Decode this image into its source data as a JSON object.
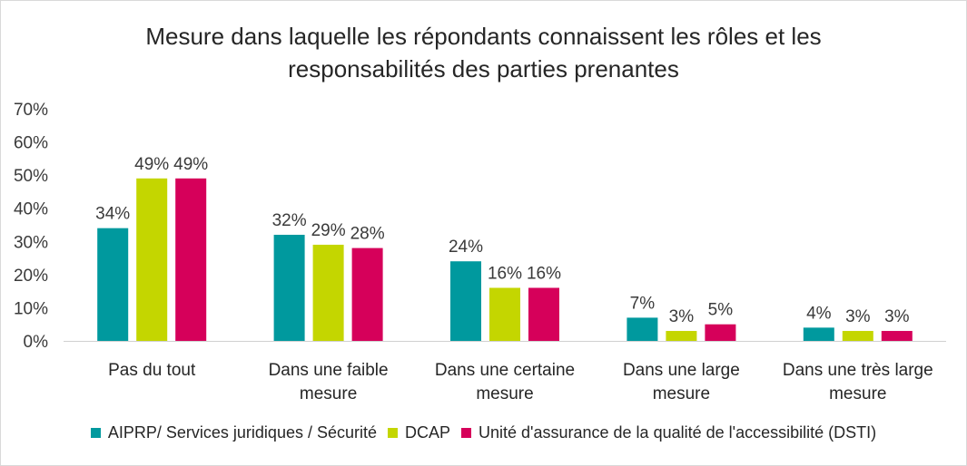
{
  "chart_data": {
    "type": "bar",
    "title_lines": [
      "Mesure dans laquelle les répondants connaissent les rôles et les",
      "responsabilités des parties prenantes"
    ],
    "categories": [
      [
        "Pas du tout"
      ],
      [
        "Dans une faible",
        "mesure"
      ],
      [
        "Dans une certaine",
        "mesure"
      ],
      [
        "Dans une large",
        "mesure"
      ],
      [
        "Dans une très large",
        "mesure"
      ]
    ],
    "series": [
      {
        "name": "AIPRP/ Services juridiques / Sécurité",
        "color": "#00999e",
        "values": [
          34,
          32,
          24,
          7,
          4
        ],
        "labels": [
          "34%",
          "32%",
          "24%",
          "7%",
          "4%"
        ]
      },
      {
        "name": "DCAP",
        "color": "#c4d600",
        "values": [
          49,
          29,
          16,
          3,
          3
        ],
        "labels": [
          "49%",
          "29%",
          "16%",
          "3%",
          "3%"
        ]
      },
      {
        "name": "Unité d'assurance de la qualité de l'accessibilité (DSTI)",
        "color": "#d6005a",
        "values": [
          49,
          28,
          16,
          5,
          3
        ],
        "labels": [
          "49%",
          "28%",
          "16%",
          "5%",
          "3%"
        ]
      }
    ],
    "y_ticks": [
      "0%",
      "10%",
      "20%",
      "30%",
      "40%",
      "50%",
      "60%",
      "70%"
    ],
    "ylim": [
      0,
      70
    ],
    "grid": false,
    "legend_position": "bottom"
  }
}
